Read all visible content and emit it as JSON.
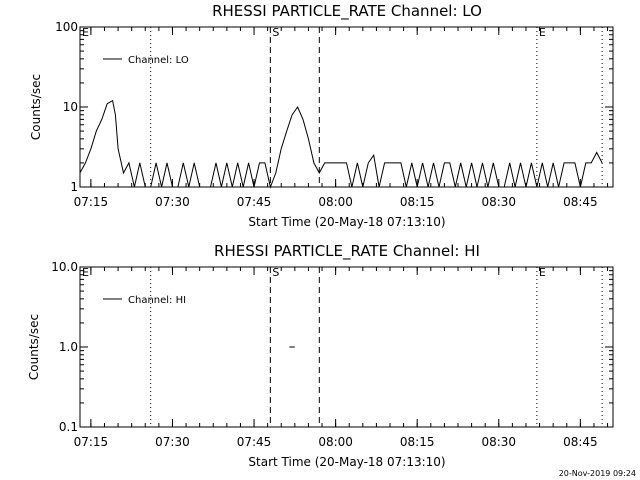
{
  "footer_timestamp": "20-Nov-2019 09:24",
  "chart_data": [
    {
      "type": "line",
      "title": "RHESSI PARTICLE_RATE Channel: LO",
      "xlabel": "Start Time (20-May-18 07:13:10)",
      "ylabel": "Counts/sec",
      "y_scale": "log",
      "ylim": [
        1,
        100
      ],
      "y_ticks": [
        {
          "value": 1,
          "label": "1"
        },
        {
          "value": 10,
          "label": "10"
        },
        {
          "value": 100,
          "label": "100"
        }
      ],
      "xlim": [
        "07:13",
        "08:51"
      ],
      "x_ticks": [
        "07:15",
        "07:30",
        "07:45",
        "08:00",
        "08:15",
        "08:30",
        "08:45"
      ],
      "legend": {
        "position": "top-left",
        "entries": [
          "Channel: LO"
        ]
      },
      "markers": [
        {
          "label": "E",
          "time": "07:13",
          "style": "none"
        },
        {
          "label": "",
          "time": "07:26",
          "style": "dotted"
        },
        {
          "label": "S",
          "time": "07:48",
          "style": "dashed"
        },
        {
          "label": "",
          "time": "07:57",
          "style": "dashed"
        },
        {
          "label": "E",
          "time": "08:37",
          "style": "dotted"
        },
        {
          "label": "",
          "time": "08:49",
          "style": "dotted"
        }
      ],
      "series": [
        {
          "x": [
            "07:13",
            "07:14",
            "07:15",
            "07:16",
            "07:17",
            "07:18",
            "07:19",
            "07:19.5",
            "07:20",
            "07:21",
            "07:22",
            "07:23",
            "07:24",
            "07:25",
            "07:26",
            "07:27",
            "07:28",
            "07:29",
            "07:30",
            "07:31",
            "07:32",
            "07:33",
            "07:34",
            "07:35",
            "07:36",
            "07:37",
            "07:38",
            "07:39",
            "07:40",
            "07:41",
            "07:42",
            "07:43",
            "07:44",
            "07:45",
            "07:46",
            "07:47",
            "07:48",
            "07:49",
            "07:50",
            "07:51",
            "07:52",
            "07:53",
            "07:54",
            "07:55",
            "07:56",
            "07:57",
            "07:58",
            "07:59",
            "08:00",
            "08:01",
            "08:02",
            "08:03",
            "08:04",
            "08:05",
            "08:06",
            "08:07",
            "08:08",
            "08:09",
            "08:10",
            "08:11",
            "08:12",
            "08:13",
            "08:14",
            "08:15",
            "08:16",
            "08:17",
            "08:18",
            "08:19",
            "08:20",
            "08:21",
            "08:22",
            "08:23",
            "08:24",
            "08:25",
            "08:26",
            "08:27",
            "08:28",
            "08:29",
            "08:30",
            "08:31",
            "08:32",
            "08:33",
            "08:34",
            "08:35",
            "08:36",
            "08:37",
            "08:38",
            "08:39",
            "08:40",
            "08:41",
            "08:42",
            "08:43",
            "08:44",
            "08:45",
            "08:46",
            "08:47",
            "08:48",
            "08:49"
          ],
          "y": [
            1.5,
            2,
            3,
            5,
            7,
            11,
            12,
            8,
            3,
            1.5,
            2,
            1,
            2,
            1,
            1,
            2,
            1,
            2,
            1,
            1,
            2,
            1,
            2,
            1,
            1,
            1,
            2,
            1,
            2,
            1,
            2,
            1,
            2,
            1,
            2,
            2,
            1,
            1.5,
            3,
            5,
            8,
            10,
            7,
            4,
            2,
            1.5,
            2,
            2,
            2,
            2,
            2,
            1,
            2,
            1,
            2,
            2.5,
            1,
            2,
            2,
            2,
            2,
            1,
            2,
            1,
            2,
            1,
            2,
            1,
            2,
            2,
            1,
            2,
            1,
            2,
            1,
            2,
            1,
            2,
            1,
            1,
            2,
            1,
            2,
            1,
            2,
            1,
            2,
            1,
            2,
            1,
            2,
            2,
            2,
            1,
            2,
            2,
            2.7,
            2
          ]
        }
      ]
    },
    {
      "type": "line",
      "title": "RHESSI PARTICLE_RATE Channel: HI",
      "xlabel": "Start Time (20-May-18 07:13:10)",
      "ylabel": "Counts/sec",
      "y_scale": "log",
      "ylim": [
        0.1,
        10
      ],
      "y_ticks": [
        {
          "value": 0.1,
          "label": "0.1"
        },
        {
          "value": 1,
          "label": "1.0"
        },
        {
          "value": 10,
          "label": "10.0"
        }
      ],
      "xlim": [
        "07:13",
        "08:51"
      ],
      "x_ticks": [
        "07:15",
        "07:30",
        "07:45",
        "08:00",
        "08:15",
        "08:30",
        "08:45"
      ],
      "legend": {
        "position": "top-left",
        "entries": [
          "Channel: HI"
        ]
      },
      "markers": [
        {
          "label": "E",
          "time": "07:13",
          "style": "none"
        },
        {
          "label": "",
          "time": "07:26",
          "style": "dotted"
        },
        {
          "label": "S",
          "time": "07:48",
          "style": "dashed"
        },
        {
          "label": "",
          "time": "07:57",
          "style": "dashed"
        },
        {
          "label": "E",
          "time": "08:37",
          "style": "dotted"
        },
        {
          "label": "",
          "time": "08:49",
          "style": "dotted"
        }
      ],
      "series": [
        {
          "x": [
            "07:51.5",
            "07:52.5"
          ],
          "y": [
            1,
            1
          ]
        }
      ]
    }
  ]
}
